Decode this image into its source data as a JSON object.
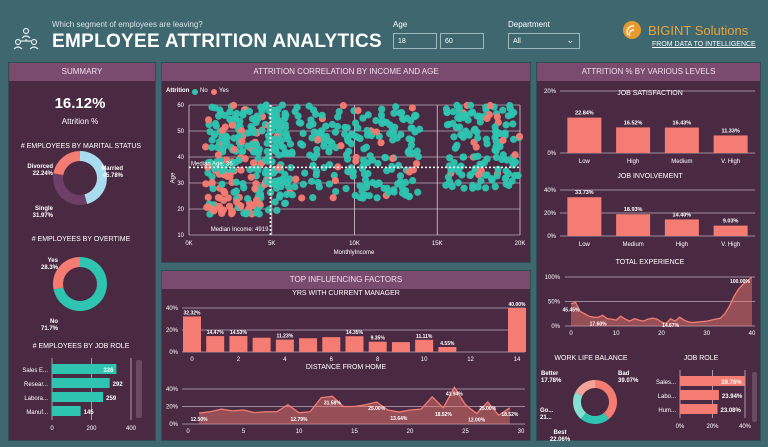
{
  "header": {
    "subtitle": "Which segment of employees are leaving?",
    "title": "EMPLOYEE ATTRITION ANALYTICS",
    "icon": "people-hierarchy-icon",
    "age_label": "Age",
    "age_min": "18",
    "age_max": "60",
    "dept_label": "Department",
    "dept_value": "All",
    "logo_name": "BIGINT Solutions",
    "logo_tagline": "FROM DATA TO INTELLIGENCE"
  },
  "colors": {
    "coral": "#f47c72",
    "teal": "#2ec4b0",
    "lightblue": "#a9dcee",
    "purple": "#6e3f66",
    "lightteal": "#86e0d3",
    "lightcoral": "#f4a39b"
  },
  "summary": {
    "title": "SUMMARY",
    "attrition_value": "16.12%",
    "attrition_label": "Attrition %",
    "marital_title": "# EMPLOYEES BY MARITAL STATUS",
    "overtime_title": "# EMPLOYEES BY OVERTIME",
    "jobrole_title": "# EMPLOYEES BY JOB ROLE"
  },
  "scatter": {
    "title": "ATTRITION CORRELATION BY INCOME AND AGE",
    "legend_title": "Attrition",
    "legend_no": "No",
    "legend_yes": "Yes",
    "xlabel": "MonthlyIncome",
    "ylabel": "Age",
    "median_age": "Median Age: 36",
    "median_income": "Median Income: 4919"
  },
  "factors": {
    "title": "TOP INFLUENCING FACTORS",
    "manager_title": "YRS WITH CURRENT MANAGER",
    "distance_title": "DISTANCE FROM HOME"
  },
  "levels": {
    "title": "ATTRITION % BY VARIOUS LEVELS",
    "satisfaction_title": "JOB SATISFACTION",
    "involvement_title": "JOB INVOLVEMENT",
    "experience_title": "TOTAL EXPERIENCE",
    "wlb_title": "WORK LIFE BALANCE",
    "jobrole_title": "JOB ROLE"
  },
  "chart_data": [
    {
      "id": "marital",
      "type": "pie",
      "donut": true,
      "slices": [
        {
          "name": "Married",
          "value": 45.78,
          "label": "45.78%"
        },
        {
          "name": "Single",
          "value": 31.97,
          "label": "31.97%"
        },
        {
          "name": "Divorced",
          "value": 22.24,
          "label": "22.24%"
        }
      ]
    },
    {
      "id": "overtime",
      "type": "pie",
      "donut": true,
      "slices": [
        {
          "name": "No",
          "value": 71.7,
          "label": "71.7%"
        },
        {
          "name": "Yes",
          "value": 28.3,
          "label": "28.3%"
        }
      ]
    },
    {
      "id": "jobrole_count",
      "type": "bar",
      "orientation": "horizontal",
      "categories": [
        "Sales E...",
        "Resear...",
        "Labora...",
        "Manuf..."
      ],
      "values": [
        326,
        292,
        259,
        145
      ],
      "xlim": [
        0,
        400
      ],
      "ticks": [
        "0",
        "200",
        "400"
      ]
    },
    {
      "id": "scatter",
      "type": "scatter",
      "xlim": [
        0,
        20000
      ],
      "ylim": [
        10,
        60
      ],
      "xticks": [
        "0K",
        "5K",
        "10K",
        "15K",
        "20K"
      ],
      "yticks": [
        "10",
        "20",
        "30",
        "40",
        "50",
        "60"
      ],
      "median_income": 4919,
      "median_age": 36,
      "series": [
        {
          "name": "No"
        },
        {
          "name": "Yes"
        }
      ]
    },
    {
      "id": "manager",
      "type": "bar",
      "x": [
        0,
        1,
        2,
        3,
        4,
        5,
        6,
        7,
        8,
        9,
        10,
        11,
        12,
        13,
        14
      ],
      "values": [
        32.32,
        14.47,
        14.53,
        13.0,
        11.23,
        12.5,
        13.5,
        14.35,
        9.35,
        9.0,
        11.11,
        4.55,
        0,
        0,
        40.0
      ],
      "labels": [
        "32.32%",
        "14.47%",
        "14.53%",
        "",
        "11.23%",
        "",
        "",
        "14.35%",
        "9.35%",
        "",
        "11.11%",
        "4.55%",
        "",
        "",
        "40.00%"
      ],
      "ylim": [
        0,
        40
      ],
      "yticks": [
        "0%",
        "20%",
        "40%"
      ],
      "xticks": [
        "0",
        "2",
        "4",
        "6",
        "8",
        "10",
        "12",
        "14"
      ]
    },
    {
      "id": "distance",
      "type": "area",
      "x": [
        1,
        2,
        3,
        4,
        5,
        6,
        7,
        8,
        9,
        10,
        11,
        12,
        13,
        14,
        15,
        16,
        17,
        18,
        19,
        20,
        21,
        22,
        23,
        24,
        25,
        26,
        27,
        28,
        29
      ],
      "values": [
        12.5,
        14,
        17,
        15,
        16,
        13,
        14,
        14,
        22,
        12.79,
        14,
        30,
        31.58,
        20,
        20,
        22,
        25,
        16,
        13.64,
        16,
        17,
        31,
        18.52,
        41.94,
        22,
        12,
        25,
        10,
        18.52
      ],
      "labels": {
        "1": "12.50%",
        "10": "12.79%",
        "13": "31.58%",
        "17": "25.00%",
        "19": "13.64%",
        "23": "18.52%",
        "24": "41.94%",
        "26": "12.00%",
        "27": "25.00%",
        "29": "18.52%"
      },
      "ylim": [
        0,
        40
      ],
      "yticks": [
        "0%",
        "20%",
        "40%"
      ],
      "xticks": [
        "0",
        "5",
        "10",
        "15",
        "20",
        "25",
        "30"
      ]
    },
    {
      "id": "satisfaction",
      "type": "bar",
      "categories": [
        "Low",
        "High",
        "Medium",
        "V. High"
      ],
      "values": [
        22.84,
        16.52,
        16.43,
        11.33
      ],
      "labels": [
        "22.84%",
        "16.52%",
        "16.43%",
        "11.33%"
      ],
      "yticks": [
        "0%",
        "20%"
      ]
    },
    {
      "id": "involvement",
      "type": "bar",
      "categories": [
        "Low",
        "Medium",
        "High",
        "V. High"
      ],
      "values": [
        33.73,
        18.93,
        14.4,
        9.03
      ],
      "labels": [
        "33.73%",
        "18.93%",
        "14.40%",
        "9.03%"
      ],
      "yticks": [
        "0%",
        "20%",
        "40%"
      ]
    },
    {
      "id": "experience",
      "type": "area",
      "x": [
        0,
        1,
        2,
        3,
        4,
        5,
        6,
        7,
        8,
        9,
        10,
        11,
        12,
        13,
        14,
        15,
        16,
        17,
        18,
        19,
        20,
        21,
        22,
        23,
        24,
        25,
        26,
        27,
        28,
        29,
        30,
        31,
        32,
        33,
        34,
        35,
        36,
        37,
        38,
        39,
        40
      ],
      "values": [
        45.45,
        48,
        30,
        25,
        20,
        18,
        17.6,
        22,
        15,
        14,
        12,
        20,
        14,
        10,
        15,
        12,
        10,
        14,
        16,
        14,
        8,
        5,
        14.67,
        10,
        18,
        12,
        8,
        7,
        8,
        9,
        10,
        12,
        14,
        16,
        25,
        40,
        60,
        75,
        85,
        92,
        100
      ],
      "labels": {
        "0": "45.45%",
        "6": "17.60%",
        "22": "14.67%",
        "40": "100.00%"
      },
      "ylim": [
        0,
        100
      ],
      "yticks": [
        "0%",
        "50%",
        "100%"
      ],
      "xticks": [
        "0",
        "10",
        "20",
        "30",
        "40"
      ]
    },
    {
      "id": "wlb",
      "type": "pie",
      "donut": true,
      "slices": [
        {
          "name": "Bad",
          "value": 39.07,
          "label": "39.07%"
        },
        {
          "name": "Best",
          "value": 22.06,
          "label": "22.06%"
        },
        {
          "name": "Go...",
          "value": 21.09,
          "label": "21..."
        },
        {
          "name": "Better",
          "value": 17.78,
          "label": "17.78%"
        }
      ]
    },
    {
      "id": "jobrole_pct",
      "type": "bar",
      "orientation": "horizontal",
      "categories": [
        "Sales...",
        "Labo...",
        "Hum..."
      ],
      "values": [
        39.76,
        23.94,
        23.08
      ],
      "labels": [
        "39.76%",
        "23.94%",
        "23.08%"
      ],
      "xlim": [
        0,
        40
      ],
      "ticks": [
        "0%",
        "20%",
        "40%"
      ]
    }
  ]
}
